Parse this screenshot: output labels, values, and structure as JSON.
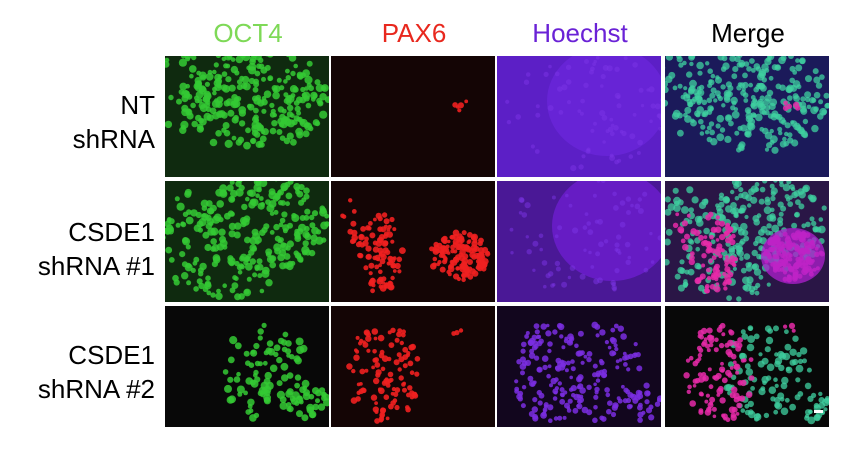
{
  "figure": {
    "columns": [
      {
        "label": "OCT4",
        "color": "#7ed957"
      },
      {
        "label": "PAX6",
        "color": "#e8281e"
      },
      {
        "label": "Hoechst",
        "color": "#6a22d6"
      },
      {
        "label": "Merge",
        "color": "#000000"
      }
    ],
    "rows": [
      {
        "line1": "NT",
        "line2": "shRNA"
      },
      {
        "line1": "CSDE1",
        "line2": "shRNA #1"
      },
      {
        "line1": "CSDE1",
        "line2": "shRNA #2"
      }
    ],
    "channel_colors": {
      "oct4": "#3fd43f",
      "pax6": "#ee2222",
      "hoechst": "#6a1fd8",
      "merge_bg": "#0a0a0a"
    }
  }
}
